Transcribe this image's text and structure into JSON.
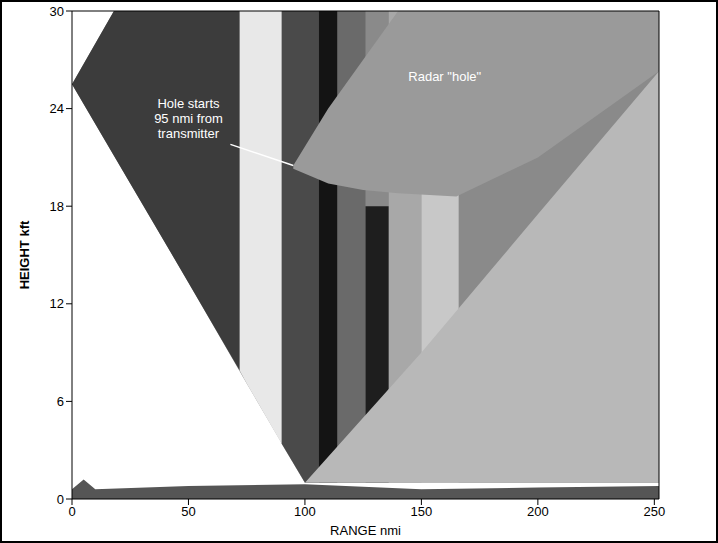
{
  "chart_data": {
    "type": "area",
    "xlabel": "RANGE nmi",
    "ylabel": "HEIGHT kft",
    "xlim": [
      0,
      252
    ],
    "ylim": [
      0,
      30
    ],
    "xticks": [
      0,
      50,
      100,
      150,
      200,
      250
    ],
    "yticks": [
      0,
      6,
      12,
      18,
      24,
      30
    ],
    "grid": false,
    "series": [
      {
        "color": "#8a8a8a",
        "x": [
          0,
          18,
          25,
          50,
          75,
          100,
          252
        ],
        "low": [
          25.5,
          21.1,
          19.4,
          13.3,
          7.1,
          1,
          1
        ],
        "high": [
          25.5,
          30,
          30,
          30,
          30,
          30,
          30
        ]
      },
      {
        "color": "#3c3c3c",
        "x": [
          0,
          18,
          25,
          50,
          72
        ],
        "low": [
          25.5,
          21.1,
          19.4,
          13.3,
          7.9
        ],
        "high": [
          25.5,
          30,
          30,
          30,
          30
        ]
      },
      {
        "color": "#e8e8e8",
        "x": [
          72,
          75,
          90,
          100
        ],
        "low": [
          7.9,
          7.1,
          3.4,
          1
        ],
        "high": [
          30,
          30,
          30,
          30
        ]
      },
      {
        "color": "#4a4a4a",
        "x": [
          90,
          100,
          106
        ],
        "low": [
          3.4,
          1,
          1
        ],
        "high": [
          30,
          30,
          30
        ]
      },
      {
        "color": "#141414",
        "x": [
          106,
          114
        ],
        "low": [
          1,
          1
        ],
        "high": [
          30,
          30
        ]
      },
      {
        "color": "#6a6a6a",
        "x": [
          114,
          126
        ],
        "low": [
          1,
          1
        ],
        "high": [
          30,
          30
        ]
      },
      {
        "color": "#1e1e1e",
        "x": [
          126,
          136
        ],
        "low": [
          1,
          1
        ],
        "high": [
          18,
          18
        ]
      },
      {
        "color": "#a8a8a8",
        "x": [
          136,
          150
        ],
        "low": [
          1,
          1
        ],
        "high": [
          30,
          30
        ]
      },
      {
        "color": "#c8c8c8",
        "x": [
          150,
          166
        ],
        "low": [
          1,
          1
        ],
        "high": [
          30,
          30
        ]
      },
      {
        "color": "#9a9a9a",
        "x": [
          95,
          110,
          125,
          140,
          165,
          200,
          252
        ],
        "low": [
          20.3,
          19.4,
          19,
          18.8,
          18.6,
          21,
          26.3
        ],
        "high": [
          20.5,
          24,
          27,
          30,
          30,
          30,
          30
        ]
      },
      {
        "color": "#b8b8b8",
        "x": [
          100,
          150,
          200,
          252
        ],
        "low": [
          1,
          1,
          1,
          1
        ],
        "high": [
          1,
          9,
          17.5,
          26.3
        ]
      },
      {
        "color": "#555555",
        "x": [
          0,
          5,
          10,
          50,
          100,
          150,
          200,
          252
        ],
        "low": [
          0,
          0,
          0,
          0,
          0,
          0,
          0,
          0
        ],
        "high": [
          0.6,
          1.2,
          0.6,
          0.8,
          0.9,
          0.6,
          0.7,
          0.8
        ]
      }
    ],
    "annotations": [
      {
        "text": "Hole starts 95 nmi from transmitter",
        "x": 50,
        "y": 24.7,
        "xy": [
          95,
          20.5
        ],
        "xytext": [
          68,
          21.8
        ]
      },
      {
        "text": "Radar \"hole\"",
        "x": 160,
        "y": 26.4
      }
    ]
  }
}
